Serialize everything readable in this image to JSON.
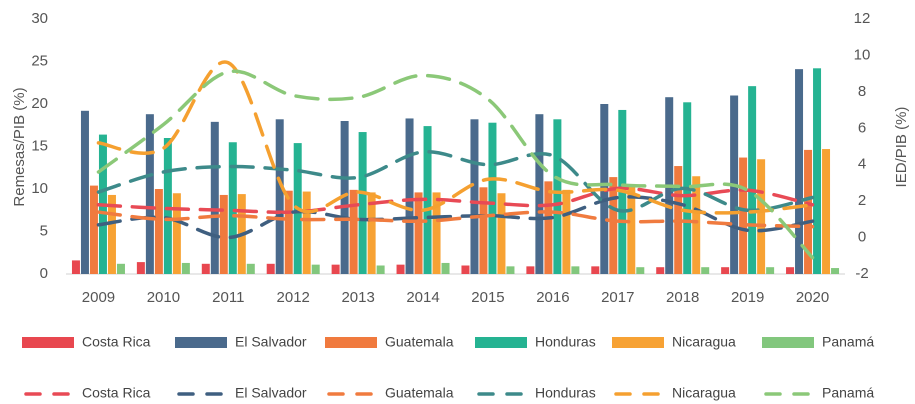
{
  "chart_data": {
    "type": "bar",
    "ylabel": "Remesas/PIB (%)",
    "y2label": "IED/PIB (%)",
    "categories": [
      "2009",
      "2010",
      "2011",
      "2012",
      "2013",
      "2014",
      "2015",
      "2016",
      "2017",
      "2018",
      "2019",
      "2020"
    ],
    "ylim": [
      0,
      30
    ],
    "yticks": [
      0,
      5,
      10,
      15,
      20,
      25,
      30
    ],
    "y2lim": [
      -2,
      12
    ],
    "y2ticks": [
      -2,
      0,
      2,
      4,
      6,
      8,
      10,
      12
    ],
    "series": [
      {
        "name": "Costa Rica",
        "color": "#e8474f",
        "type": "bar",
        "values": [
          1.6,
          1.4,
          1.2,
          1.2,
          1.1,
          1.1,
          1.0,
          0.9,
          0.9,
          0.8,
          0.8,
          0.8
        ]
      },
      {
        "name": "El Salvador",
        "color": "#4a6a8c",
        "type": "bar",
        "values": [
          19.2,
          18.8,
          17.9,
          18.2,
          18.0,
          18.3,
          18.2,
          18.8,
          20.0,
          20.8,
          21.0,
          24.1
        ]
      },
      {
        "name": "Guatemala",
        "color": "#f07a3e",
        "type": "bar",
        "values": [
          10.4,
          10.0,
          9.3,
          9.8,
          9.9,
          9.6,
          10.2,
          10.9,
          11.4,
          12.7,
          13.7,
          14.6
        ]
      },
      {
        "name": "Honduras",
        "color": "#25b392",
        "type": "bar",
        "values": [
          16.4,
          16.0,
          15.5,
          15.4,
          16.7,
          17.4,
          17.8,
          18.2,
          19.3,
          20.2,
          22.1,
          24.2
        ]
      },
      {
        "name": "Nicaragua",
        "color": "#f7a234",
        "type": "bar",
        "values": [
          9.3,
          9.5,
          9.4,
          9.7,
          9.6,
          9.6,
          9.5,
          9.9,
          10.5,
          11.5,
          13.5,
          14.7
        ]
      },
      {
        "name": "Panamá",
        "color": "#82c77d",
        "type": "bar",
        "values": [
          1.2,
          1.3,
          1.2,
          1.1,
          1.0,
          1.3,
          0.9,
          0.9,
          0.8,
          0.8,
          0.8,
          0.7
        ]
      },
      {
        "name": "Costa Rica",
        "color": "#e84a55",
        "type": "line",
        "axis": "y2",
        "values": [
          1.8,
          1.6,
          1.5,
          1.4,
          1.8,
          2.1,
          1.9,
          1.8,
          2.7,
          2.3,
          2.6,
          1.8
        ]
      },
      {
        "name": "El Salvador",
        "color": "#3f5f80",
        "type": "line",
        "axis": "y2",
        "values": [
          0.7,
          1.1,
          0.0,
          1.4,
          1.0,
          1.1,
          1.2,
          1.1,
          2.2,
          1.8,
          0.4,
          0.9
        ]
      },
      {
        "name": "Guatemala",
        "color": "#f07b3f",
        "type": "line",
        "axis": "y2",
        "values": [
          1.4,
          1.0,
          1.2,
          1.0,
          1.0,
          0.9,
          1.2,
          1.4,
          0.9,
          0.9,
          0.7,
          0.6
        ]
      },
      {
        "name": "Honduras",
        "color": "#3d8a8a",
        "type": "line",
        "axis": "y2",
        "values": [
          2.5,
          3.6,
          3.9,
          3.7,
          3.3,
          4.7,
          4.0,
          4.5,
          1.5,
          2.7,
          1.5,
          2.2
        ]
      },
      {
        "name": "Nicaragua",
        "color": "#f5a030",
        "type": "line",
        "axis": "y2",
        "values": [
          5.2,
          4.9,
          9.6,
          1.8,
          2.5,
          1.5,
          3.2,
          2.5,
          2.6,
          1.5,
          1.4,
          1.8
        ]
      },
      {
        "name": "Panamá",
        "color": "#8bc878",
        "type": "line",
        "axis": "y2",
        "values": [
          3.6,
          6.2,
          9.1,
          7.8,
          7.7,
          8.9,
          7.6,
          3.4,
          2.9,
          2.8,
          2.6,
          -1.1
        ]
      }
    ]
  }
}
